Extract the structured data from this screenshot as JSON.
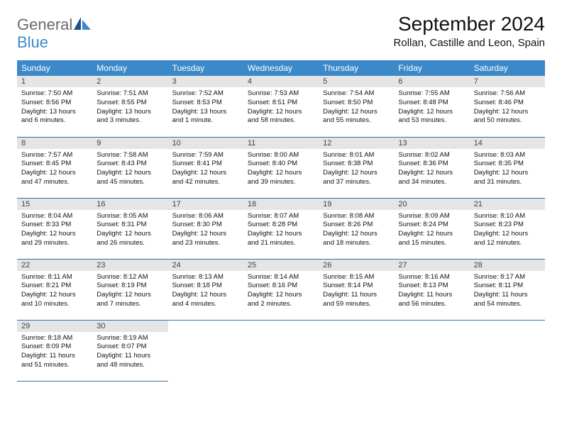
{
  "brand": {
    "name_gray": "General",
    "name_blue": "Blue"
  },
  "title": "September 2024",
  "location": "Rollan, Castille and Leon, Spain",
  "header_bg": "#3b89c9",
  "header_fg": "#ffffff",
  "rule_color": "#3b6fa0",
  "daynum_bg": "#e5e5e5",
  "weekdays": [
    "Sunday",
    "Monday",
    "Tuesday",
    "Wednesday",
    "Thursday",
    "Friday",
    "Saturday"
  ],
  "days": [
    {
      "n": "1",
      "sunrise": "7:50 AM",
      "sunset": "8:56 PM",
      "daylight": "13 hours and 6 minutes."
    },
    {
      "n": "2",
      "sunrise": "7:51 AM",
      "sunset": "8:55 PM",
      "daylight": "13 hours and 3 minutes."
    },
    {
      "n": "3",
      "sunrise": "7:52 AM",
      "sunset": "8:53 PM",
      "daylight": "13 hours and 1 minute."
    },
    {
      "n": "4",
      "sunrise": "7:53 AM",
      "sunset": "8:51 PM",
      "daylight": "12 hours and 58 minutes."
    },
    {
      "n": "5",
      "sunrise": "7:54 AM",
      "sunset": "8:50 PM",
      "daylight": "12 hours and 55 minutes."
    },
    {
      "n": "6",
      "sunrise": "7:55 AM",
      "sunset": "8:48 PM",
      "daylight": "12 hours and 53 minutes."
    },
    {
      "n": "7",
      "sunrise": "7:56 AM",
      "sunset": "8:46 PM",
      "daylight": "12 hours and 50 minutes."
    },
    {
      "n": "8",
      "sunrise": "7:57 AM",
      "sunset": "8:45 PM",
      "daylight": "12 hours and 47 minutes."
    },
    {
      "n": "9",
      "sunrise": "7:58 AM",
      "sunset": "8:43 PM",
      "daylight": "12 hours and 45 minutes."
    },
    {
      "n": "10",
      "sunrise": "7:59 AM",
      "sunset": "8:41 PM",
      "daylight": "12 hours and 42 minutes."
    },
    {
      "n": "11",
      "sunrise": "8:00 AM",
      "sunset": "8:40 PM",
      "daylight": "12 hours and 39 minutes."
    },
    {
      "n": "12",
      "sunrise": "8:01 AM",
      "sunset": "8:38 PM",
      "daylight": "12 hours and 37 minutes."
    },
    {
      "n": "13",
      "sunrise": "8:02 AM",
      "sunset": "8:36 PM",
      "daylight": "12 hours and 34 minutes."
    },
    {
      "n": "14",
      "sunrise": "8:03 AM",
      "sunset": "8:35 PM",
      "daylight": "12 hours and 31 minutes."
    },
    {
      "n": "15",
      "sunrise": "8:04 AM",
      "sunset": "8:33 PM",
      "daylight": "12 hours and 29 minutes."
    },
    {
      "n": "16",
      "sunrise": "8:05 AM",
      "sunset": "8:31 PM",
      "daylight": "12 hours and 26 minutes."
    },
    {
      "n": "17",
      "sunrise": "8:06 AM",
      "sunset": "8:30 PM",
      "daylight": "12 hours and 23 minutes."
    },
    {
      "n": "18",
      "sunrise": "8:07 AM",
      "sunset": "8:28 PM",
      "daylight": "12 hours and 21 minutes."
    },
    {
      "n": "19",
      "sunrise": "8:08 AM",
      "sunset": "8:26 PM",
      "daylight": "12 hours and 18 minutes."
    },
    {
      "n": "20",
      "sunrise": "8:09 AM",
      "sunset": "8:24 PM",
      "daylight": "12 hours and 15 minutes."
    },
    {
      "n": "21",
      "sunrise": "8:10 AM",
      "sunset": "8:23 PM",
      "daylight": "12 hours and 12 minutes."
    },
    {
      "n": "22",
      "sunrise": "8:11 AM",
      "sunset": "8:21 PM",
      "daylight": "12 hours and 10 minutes."
    },
    {
      "n": "23",
      "sunrise": "8:12 AM",
      "sunset": "8:19 PM",
      "daylight": "12 hours and 7 minutes."
    },
    {
      "n": "24",
      "sunrise": "8:13 AM",
      "sunset": "8:18 PM",
      "daylight": "12 hours and 4 minutes."
    },
    {
      "n": "25",
      "sunrise": "8:14 AM",
      "sunset": "8:16 PM",
      "daylight": "12 hours and 2 minutes."
    },
    {
      "n": "26",
      "sunrise": "8:15 AM",
      "sunset": "8:14 PM",
      "daylight": "11 hours and 59 minutes."
    },
    {
      "n": "27",
      "sunrise": "8:16 AM",
      "sunset": "8:13 PM",
      "daylight": "11 hours and 56 minutes."
    },
    {
      "n": "28",
      "sunrise": "8:17 AM",
      "sunset": "8:11 PM",
      "daylight": "11 hours and 54 minutes."
    },
    {
      "n": "29",
      "sunrise": "8:18 AM",
      "sunset": "8:09 PM",
      "daylight": "11 hours and 51 minutes."
    },
    {
      "n": "30",
      "sunrise": "8:19 AM",
      "sunset": "8:07 PM",
      "daylight": "11 hours and 48 minutes."
    }
  ],
  "labels": {
    "sunrise": "Sunrise:",
    "sunset": "Sunset:",
    "daylight": "Daylight:"
  }
}
